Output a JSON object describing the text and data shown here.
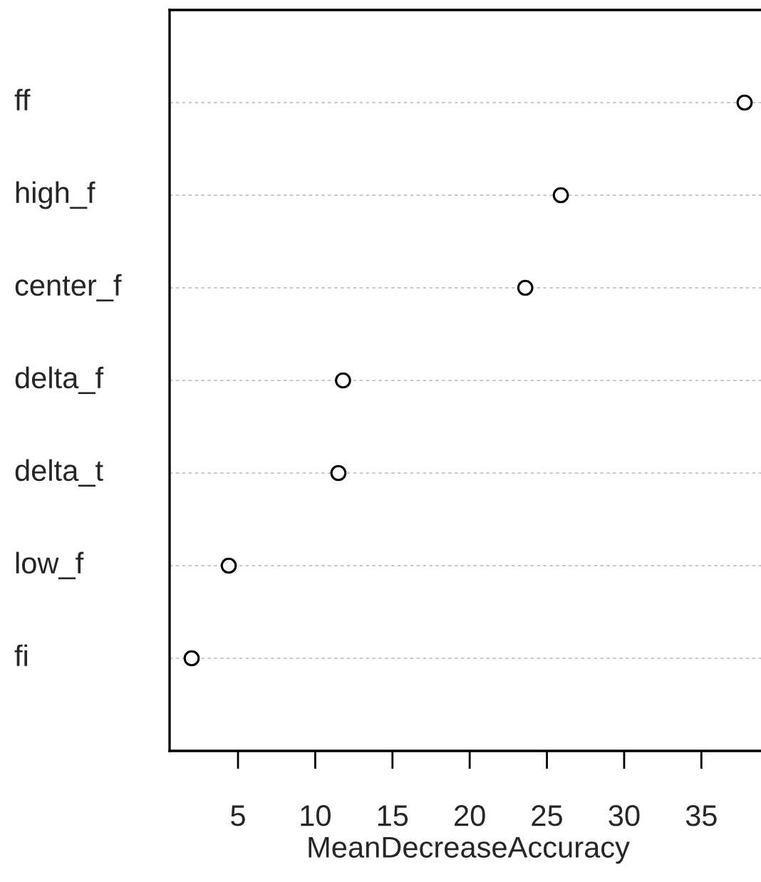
{
  "chart_data": {
    "type": "scatter",
    "xlabel": "MeanDecreaseAccuracy",
    "categories": [
      "ff",
      "high_f",
      "center_f",
      "delta_f",
      "delta_t",
      "low_f",
      "fi"
    ],
    "orientation": "horizontal",
    "values": [
      37.8,
      25.9,
      23.6,
      11.8,
      11.5,
      4.4,
      2.0
    ],
    "color": "#000000",
    "marker": "circle",
    "xlim": [
      0.57,
      39.23
    ],
    "xticks": [
      5,
      10,
      15,
      20,
      25,
      30,
      35
    ],
    "grid": "y"
  }
}
